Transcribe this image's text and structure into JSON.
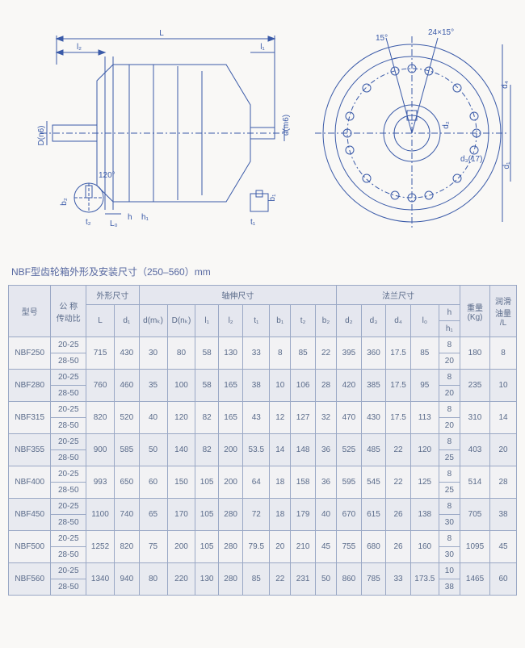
{
  "caption": "NBF型齿轮箱外形及安装尺寸（250–560）mm",
  "diagram": {
    "stroke": "#3a5aa8",
    "labels": [
      "L",
      "l₂",
      "l₁",
      "d(m6)",
      "D(n6)",
      "120°",
      "b₂",
      "t₂",
      "L₀",
      "h",
      "h₁",
      "t₁",
      "b₁",
      "15°",
      "24×15°",
      "d₂",
      "d₄",
      "d₃(17)",
      "d₁"
    ]
  },
  "table": {
    "headers": {
      "model": "型号",
      "ratio": "公 称\n传动比",
      "outline": "外形尺寸",
      "shaft": "轴伸尺寸",
      "flange": "法兰尺寸",
      "weight": "重量\n(Kg)",
      "oil": "润滑\n油量\n/L",
      "L": "L",
      "d1": "d₁",
      "dm6": "d(mₖ)",
      "Dn6": "D(nₖ)",
      "l1": "l₁",
      "l2": "l₂",
      "t1": "t₁",
      "b1": "b₁",
      "t2": "t₂",
      "b2": "b₂",
      "d2": "d₂",
      "d3": "d₃",
      "d4": "d₄",
      "l0": "l₀",
      "h": "h",
      "h1": "h₁"
    },
    "ratio_a": "20-25",
    "ratio_b": "28-50",
    "rows": [
      {
        "model": "NBF250",
        "L": "715",
        "d1": "430",
        "dm6": "30",
        "Dn6": "80",
        "l1": "58",
        "l2": "130",
        "t1": "33",
        "b1": "8",
        "t2": "85",
        "b2": "22",
        "d2": "395",
        "d3": "360",
        "d4": "17.5",
        "l0": "85",
        "h": "8",
        "h1": "20",
        "wt": "180",
        "oil": "8"
      },
      {
        "model": "NBF280",
        "L": "760",
        "d1": "460",
        "dm6": "35",
        "Dn6": "100",
        "l1": "58",
        "l2": "165",
        "t1": "38",
        "b1": "10",
        "t2": "106",
        "b2": "28",
        "d2": "420",
        "d3": "385",
        "d4": "17.5",
        "l0": "95",
        "h": "8",
        "h1": "20",
        "wt": "235",
        "oil": "10"
      },
      {
        "model": "NBF315",
        "L": "820",
        "d1": "520",
        "dm6": "40",
        "Dn6": "120",
        "l1": "82",
        "l2": "165",
        "t1": "43",
        "b1": "12",
        "t2": "127",
        "b2": "32",
        "d2": "470",
        "d3": "430",
        "d4": "17.5",
        "l0": "113",
        "h": "8",
        "h1": "20",
        "wt": "310",
        "oil": "14"
      },
      {
        "model": "NBF355",
        "L": "900",
        "d1": "585",
        "dm6": "50",
        "Dn6": "140",
        "l1": "82",
        "l2": "200",
        "t1": "53.5",
        "b1": "14",
        "t2": "148",
        "b2": "36",
        "d2": "525",
        "d3": "485",
        "d4": "22",
        "l0": "120",
        "h": "8",
        "h1": "25",
        "wt": "403",
        "oil": "20"
      },
      {
        "model": "NBF400",
        "L": "993",
        "d1": "650",
        "dm6": "60",
        "Dn6": "150",
        "l1": "105",
        "l2": "200",
        "t1": "64",
        "b1": "18",
        "t2": "158",
        "b2": "36",
        "d2": "595",
        "d3": "545",
        "d4": "22",
        "l0": "125",
        "h": "8",
        "h1": "25",
        "wt": "514",
        "oil": "28"
      },
      {
        "model": "NBF450",
        "L": "1100",
        "d1": "740",
        "dm6": "65",
        "Dn6": "170",
        "l1": "105",
        "l2": "280",
        "t1": "72",
        "b1": "18",
        "t2": "179",
        "b2": "40",
        "d2": "670",
        "d3": "615",
        "d4": "26",
        "l0": "138",
        "h": "8",
        "h1": "30",
        "wt": "705",
        "oil": "38"
      },
      {
        "model": "NBF500",
        "L": "1252",
        "d1": "820",
        "dm6": "75",
        "Dn6": "200",
        "l1": "105",
        "l2": "280",
        "t1": "79.5",
        "b1": "20",
        "t2": "210",
        "b2": "45",
        "d2": "755",
        "d3": "680",
        "d4": "26",
        "l0": "160",
        "h": "8",
        "h1": "30",
        "wt": "1095",
        "oil": "45"
      },
      {
        "model": "NBF560",
        "L": "1340",
        "d1": "940",
        "dm6": "80",
        "Dn6": "220",
        "l1": "130",
        "l2": "280",
        "t1": "85",
        "b1": "22",
        "t2": "231",
        "b2": "50",
        "d2": "860",
        "d3": "785",
        "d4": "33",
        "l0": "173.5",
        "h": "10",
        "h1": "38",
        "wt": "1465",
        "oil": "60"
      }
    ]
  }
}
